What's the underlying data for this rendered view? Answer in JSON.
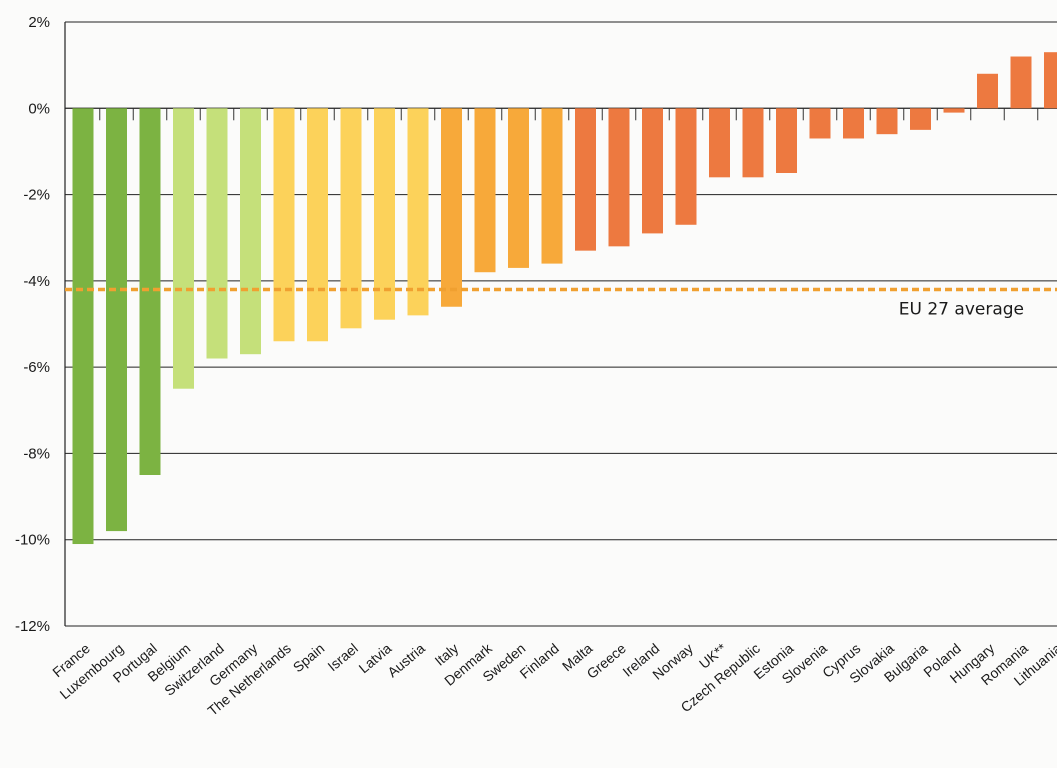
{
  "chart_data": {
    "type": "bar",
    "categories": [
      "France",
      "Luxembourg",
      "Portugal",
      "Belgium",
      "Switzerland",
      "Germany",
      "The Netherlands",
      "Spain",
      "Israel",
      "Latvia",
      "Austria",
      "Italy",
      "Denmark",
      "Sweden",
      "Finland",
      "Malta",
      "Greece",
      "Ireland",
      "Norway",
      "UK**",
      "Czech Republic",
      "Estonia",
      "Slovenia",
      "Cyprus",
      "Slovakia",
      "Bulgaria",
      "Poland",
      "Hungary",
      "Romania",
      "Lithuania"
    ],
    "values": [
      -10.1,
      -9.8,
      -8.5,
      -6.5,
      -5.8,
      -5.7,
      -5.4,
      -5.4,
      -5.1,
      -4.9,
      -4.8,
      -4.6,
      -3.8,
      -3.7,
      -3.6,
      -3.3,
      -3.2,
      -2.9,
      -2.7,
      -1.6,
      -1.6,
      -1.5,
      -0.7,
      -0.7,
      -0.6,
      -0.5,
      -0.1,
      0.8,
      1.2,
      1.3
    ],
    "colors": [
      "#7cb342",
      "#7cb342",
      "#7cb342",
      "#c5e07a",
      "#c5e07a",
      "#c5e07a",
      "#fcd25a",
      "#fcd25a",
      "#fcd25a",
      "#fcd25a",
      "#fcd25a",
      "#f7a93a",
      "#f7a93a",
      "#f7a93a",
      "#f7a93a",
      "#ed7940",
      "#ed7940",
      "#ed7940",
      "#ed7940",
      "#ed7940",
      "#ed7940",
      "#ed7940",
      "#ed7940",
      "#ed7940",
      "#ed7940",
      "#ed7940",
      "#ed7940",
      "#ed7940",
      "#ed7940",
      "#ed7940"
    ],
    "ylim": [
      -12,
      2
    ],
    "yticks": [
      2,
      0,
      -2,
      -4,
      -6,
      -8,
      -10,
      -12
    ],
    "ytick_labels": [
      "2%",
      "0%",
      "-2%",
      "-4%",
      "-6%",
      "-8%",
      "-10%",
      "-12%"
    ],
    "reference_line": {
      "value": -4.2,
      "label": "EU 27 average",
      "color": "#f0a030"
    },
    "grid": true,
    "legend": "none"
  }
}
